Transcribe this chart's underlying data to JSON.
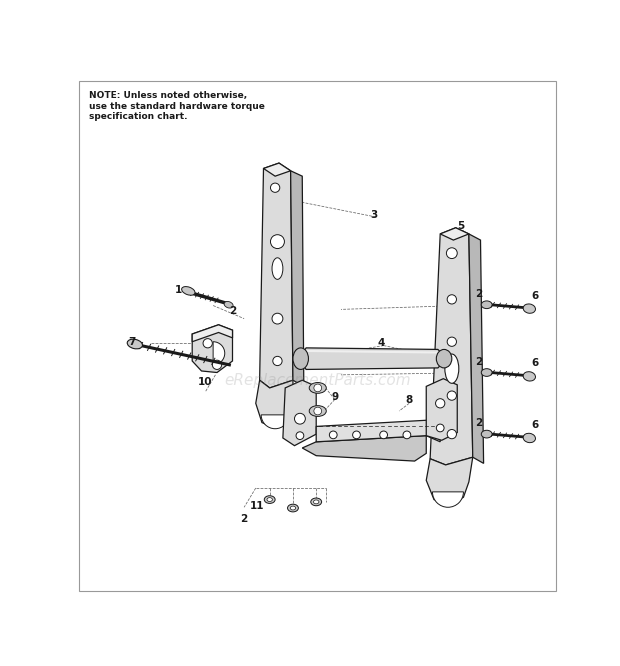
{
  "bg_color": "#ffffff",
  "note_text": "NOTE: Unless noted otherwise,\nuse the standard hardware torque\nspecification chart.",
  "note_fontsize": 6.5,
  "watermark": "eReplacementParts.com",
  "watermark_alpha": 0.22,
  "watermark_fontsize": 11,
  "label_fontsize": 7.5,
  "part_color": "#e8e8e8",
  "edge_color": "#1a1a1a",
  "shadow_color": "#c0c0c0"
}
